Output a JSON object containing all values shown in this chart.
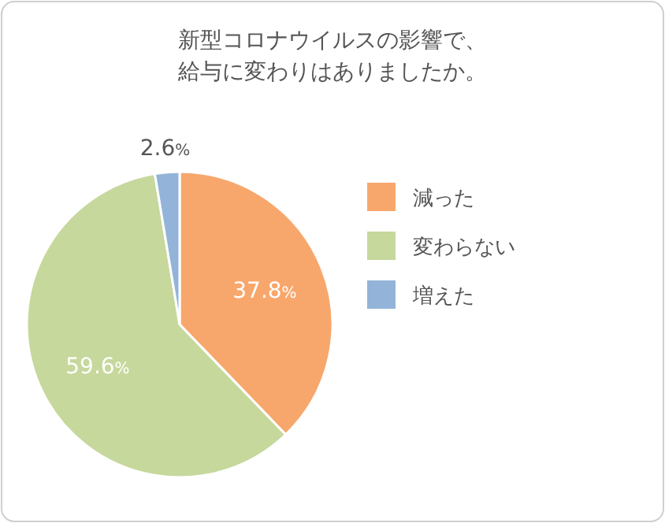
{
  "chart_data": {
    "type": "pie",
    "title": "新型コロナウイルスの影響で、給与に変わりはありましたか。",
    "value_labels": [
      "37.8%",
      "59.6%",
      "2.6%"
    ],
    "categories": [
      "減った",
      "変わらない",
      "増えた"
    ],
    "values": [
      37.8,
      59.6,
      2.6
    ],
    "colors": [
      "#f8a76c",
      "#c6d89c",
      "#93b4d8"
    ],
    "legend": "right"
  }
}
